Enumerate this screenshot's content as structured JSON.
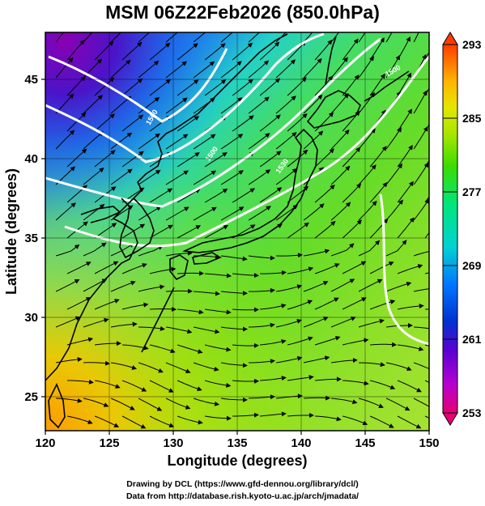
{
  "title": "MSM 06Z22Feb2026 (850.0hPa)",
  "map": {
    "lon_range": [
      120,
      150
    ],
    "lat_range": [
      22.5,
      47.6
    ],
    "x_ticks": [
      "120",
      "125",
      "130",
      "135",
      "140",
      "145",
      "150"
    ],
    "y_ticks": [
      "25",
      "30",
      "35",
      "40",
      "45"
    ],
    "xlabel": "Longitude (degrees)",
    "ylabel": "Latitude  (degrees)",
    "field": "temperature",
    "contour_labels": [
      "1500",
      "1500",
      "1530",
      "1500"
    ]
  },
  "colorbar": {
    "min": 253,
    "max": 293,
    "tick_labels": [
      "293",
      "285",
      "277",
      "269",
      "261",
      "253"
    ],
    "colors": [
      "#e60073",
      "#b400d2",
      "#5a00d2",
      "#0032d2",
      "#0078ff",
      "#00d2d2",
      "#00e678",
      "#3cdc00",
      "#a0e600",
      "#e6e600",
      "#ffb400",
      "#ff7800",
      "#ff3c00"
    ]
  },
  "credits": {
    "line1": "Drawing by DCL (https://www.gfd-dennou.org/library/dcl/)",
    "line2": "Data from http://database.rish.kyoto-u.ac.jp/arch/jmadata/"
  }
}
